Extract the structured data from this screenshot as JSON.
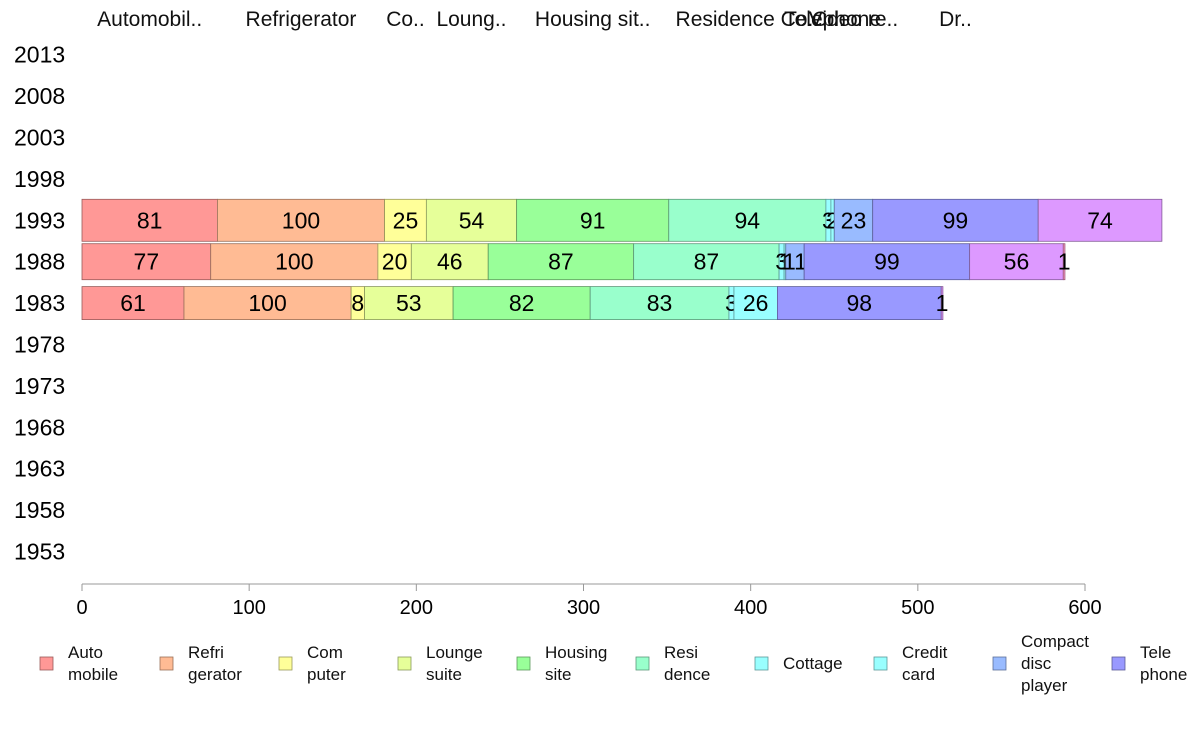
{
  "chart_data": {
    "type": "bar",
    "orientation": "horizontal",
    "stacked": true,
    "title": "",
    "xlabel": "",
    "ylabel": "",
    "xlim": [
      0,
      600
    ],
    "x_ticks": [
      "0",
      "100",
      "200",
      "300",
      "400",
      "500",
      "600"
    ],
    "grid": false,
    "legend_position": "bottom",
    "categories": [
      "2013",
      "2008",
      "2003",
      "1998",
      "1993",
      "1988",
      "1983",
      "1978",
      "1973",
      "1968",
      "1963",
      "1958",
      "1953"
    ],
    "top_labels": [
      "Automobil..",
      "Refrigerator",
      "Co..",
      "Loung..",
      "Housing sit..",
      "Residence Co..",
      "Cr..",
      "Telephone",
      "Video re..",
      "Dr.."
    ],
    "series": [
      {
        "name": "Auto mobile",
        "legend_lines": [
          "Auto",
          "mobile"
        ],
        "color": "#ff9896",
        "values": {
          "1993": 81,
          "1988": 77,
          "1983": 61
        }
      },
      {
        "name": "Refri gerator",
        "legend_lines": [
          "Refri",
          "gerator"
        ],
        "color": "#ffbb94",
        "values": {
          "1993": 100,
          "1988": 100,
          "1983": 100
        }
      },
      {
        "name": "Com puter",
        "legend_lines": [
          "Com",
          "puter"
        ],
        "color": "#ffff99",
        "values": {
          "1993": 25,
          "1988": 20,
          "1983": 8
        }
      },
      {
        "name": "Lounge suite",
        "legend_lines": [
          "Lounge",
          "suite"
        ],
        "color": "#e6ff99",
        "values": {
          "1993": 54,
          "1988": 46,
          "1983": 53
        }
      },
      {
        "name": "Housing site",
        "legend_lines": [
          "Housing",
          "site"
        ],
        "color": "#99ff99",
        "values": {
          "1993": 91,
          "1988": 87,
          "1983": 82
        }
      },
      {
        "name": "Resi dence",
        "legend_lines": [
          "Resi",
          "dence"
        ],
        "color": "#99ffcc",
        "values": {
          "1993": 94,
          "1988": 87,
          "1983": 83
        }
      },
      {
        "name": "Cottage",
        "legend_lines": [
          "Cottage"
        ],
        "color": "#99ffff",
        "values": {
          "1993": 3,
          "1988": 3,
          "1983": 3
        }
      },
      {
        "name": "Credit card",
        "legend_lines": [
          "Credit",
          "card"
        ],
        "color": "#99ffff",
        "values": {
          "1993": 2,
          "1988": 1,
          "1983": 26
        }
      },
      {
        "name": "Compact disc player",
        "legend_lines": [
          "Compact",
          "disc",
          "player"
        ],
        "color": "#99bbff",
        "values": {
          "1993": 23,
          "1988": 11,
          "1983": 0
        }
      },
      {
        "name": "Tele phone",
        "legend_lines": [
          "Tele",
          "phone"
        ],
        "color": "#9999ff",
        "values": {
          "1993": 99,
          "1988": 99,
          "1983": 98
        }
      },
      {
        "name": "Video recorder",
        "legend_lines": [],
        "color": "#dd99ff",
        "values": {
          "1993": 74,
          "1988": 56,
          "1983": 1
        }
      },
      {
        "name": "Dr..",
        "legend_lines": [],
        "color": "#ff99cc",
        "values": {
          "1993": 0,
          "1988": 1,
          "1983": 0
        }
      }
    ],
    "legend_visible_count": 10
  }
}
